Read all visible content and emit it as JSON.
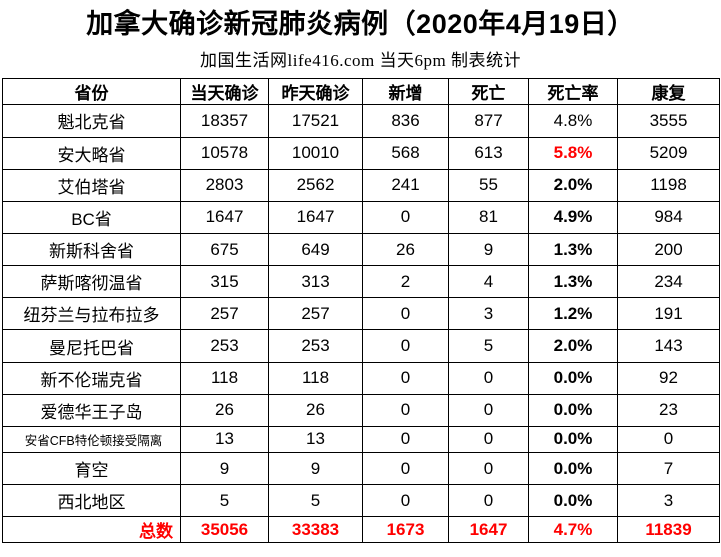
{
  "title": "加拿大确诊新冠肺炎病例（2020年4月19日）",
  "subtitle": "加国生活网life416.com 当天6pm 制表统计",
  "colors": {
    "text": "#000000",
    "border": "#000000",
    "highlight_red": "#ff0000",
    "background": "#ffffff"
  },
  "chart_data": {
    "type": "table",
    "title": "加拿大确诊新冠肺炎病例（2020年4月19日）",
    "subtitle": "加国生活网life416.com 当天6pm 制表统计",
    "columns": [
      "省份",
      "当天确诊",
      "昨天确诊",
      "新增",
      "死亡",
      "死亡率",
      "康复"
    ],
    "rows": [
      [
        "魁北克省",
        "18357",
        "17521",
        "836",
        "877",
        "4.8%",
        "3555"
      ],
      [
        "安大略省",
        "10578",
        "10010",
        "568",
        "613",
        "5.8%",
        "5209"
      ],
      [
        "艾伯塔省",
        "2803",
        "2562",
        "241",
        "55",
        "2.0%",
        "1198"
      ],
      [
        "BC省",
        "1647",
        "1647",
        "0",
        "81",
        "4.9%",
        "984"
      ],
      [
        "新斯科舍省",
        "675",
        "649",
        "26",
        "9",
        "1.3%",
        "200"
      ],
      [
        "萨斯喀彻温省",
        "315",
        "313",
        "2",
        "4",
        "1.3%",
        "234"
      ],
      [
        "纽芬兰与拉布拉多",
        "257",
        "257",
        "0",
        "3",
        "1.2%",
        "191"
      ],
      [
        "曼尼托巴省",
        "253",
        "253",
        "0",
        "5",
        "2.0%",
        "143"
      ],
      [
        "新不伦瑞克省",
        "118",
        "118",
        "0",
        "0",
        "0.0%",
        "92"
      ],
      [
        "爱德华王子岛",
        "26",
        "26",
        "0",
        "0",
        "0.0%",
        "23"
      ],
      [
        "安省CFB特伦顿接受隔离",
        "13",
        "13",
        "0",
        "0",
        "0.0%",
        "0"
      ],
      [
        "育空",
        "9",
        "9",
        "0",
        "0",
        "0.0%",
        "7"
      ],
      [
        "西北地区",
        "5",
        "5",
        "0",
        "0",
        "0.0%",
        "3"
      ]
    ],
    "totals": [
      "总数",
      "35056",
      "33383",
      "1673",
      "1647",
      "4.7%",
      "11839"
    ]
  },
  "styles": {
    "rate_plain_rows": [
      0
    ],
    "rate_red_rows": [
      1
    ],
    "small_label_rows": [
      10
    ]
  }
}
